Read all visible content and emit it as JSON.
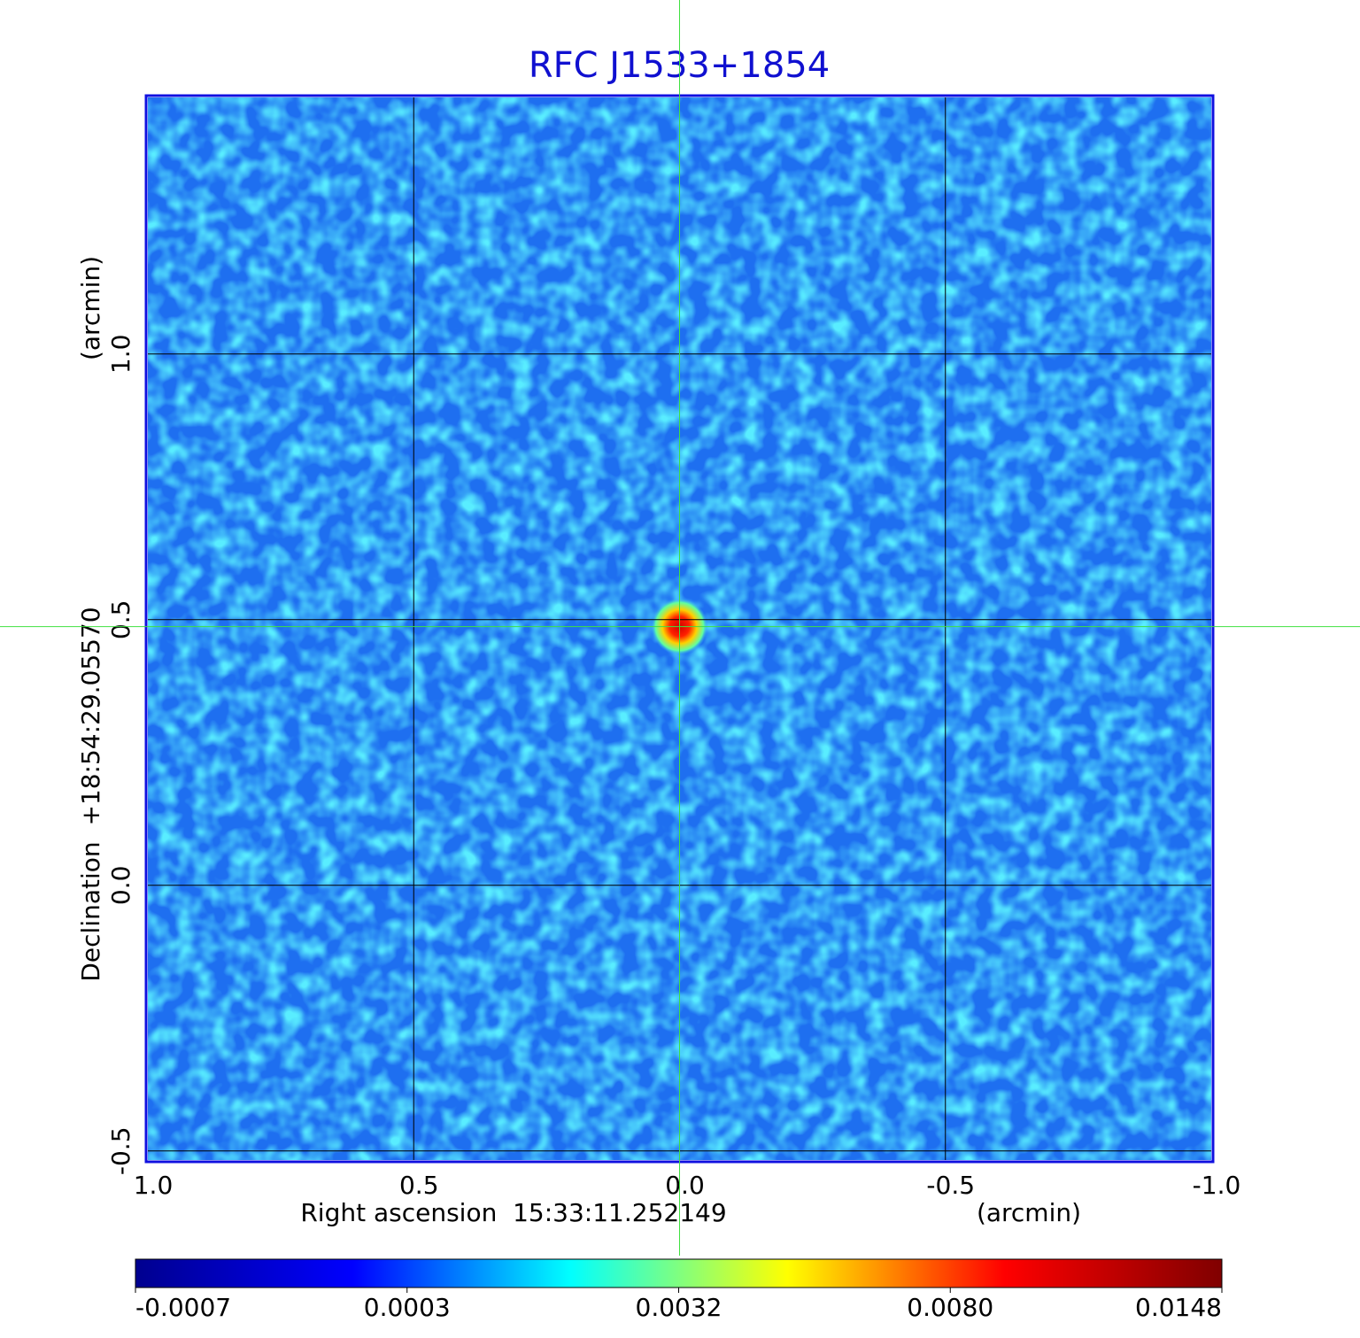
{
  "chart_data": {
    "type": "image",
    "title": "RFC J1533+1854",
    "xlabel": "Right ascension  15:33:11.252149",
    "xunit": "(arcmin)",
    "ylabel": "Declination  +18:54:29.05570",
    "yunit": "(arcmin)",
    "xlim": [
      1,
      -1
    ],
    "xticks": [
      {
        "value": 1,
        "label": "1.0"
      },
      {
        "value": 0.5,
        "label": "0.5"
      },
      {
        "value": 0,
        "label": "0.0"
      },
      {
        "value": -0.5,
        "label": "-0.5"
      },
      {
        "value": -1,
        "label": "-1.0"
      }
    ],
    "ylim": [
      -0.517,
      1.483
    ],
    "yticks": [
      {
        "value": -0.5,
        "label": "-0.5"
      },
      {
        "value": 0,
        "label": "0.0"
      },
      {
        "value": 0.5,
        "label": "0.5"
      },
      {
        "value": 1,
        "label": "1.0"
      }
    ],
    "grid": true,
    "crosshair": {
      "x": 0,
      "y": 0.487
    },
    "colorbar": {
      "ticks": [
        -0.0007,
        0.0003,
        0.0032,
        {
          "value": 0.008,
          "label": "0.0080"
        },
        0.0148
      ],
      "colors": [
        "#00008f",
        "#0000ff",
        "#00ffff",
        "#ffff00",
        "#ff0000",
        "#800000"
      ]
    }
  }
}
